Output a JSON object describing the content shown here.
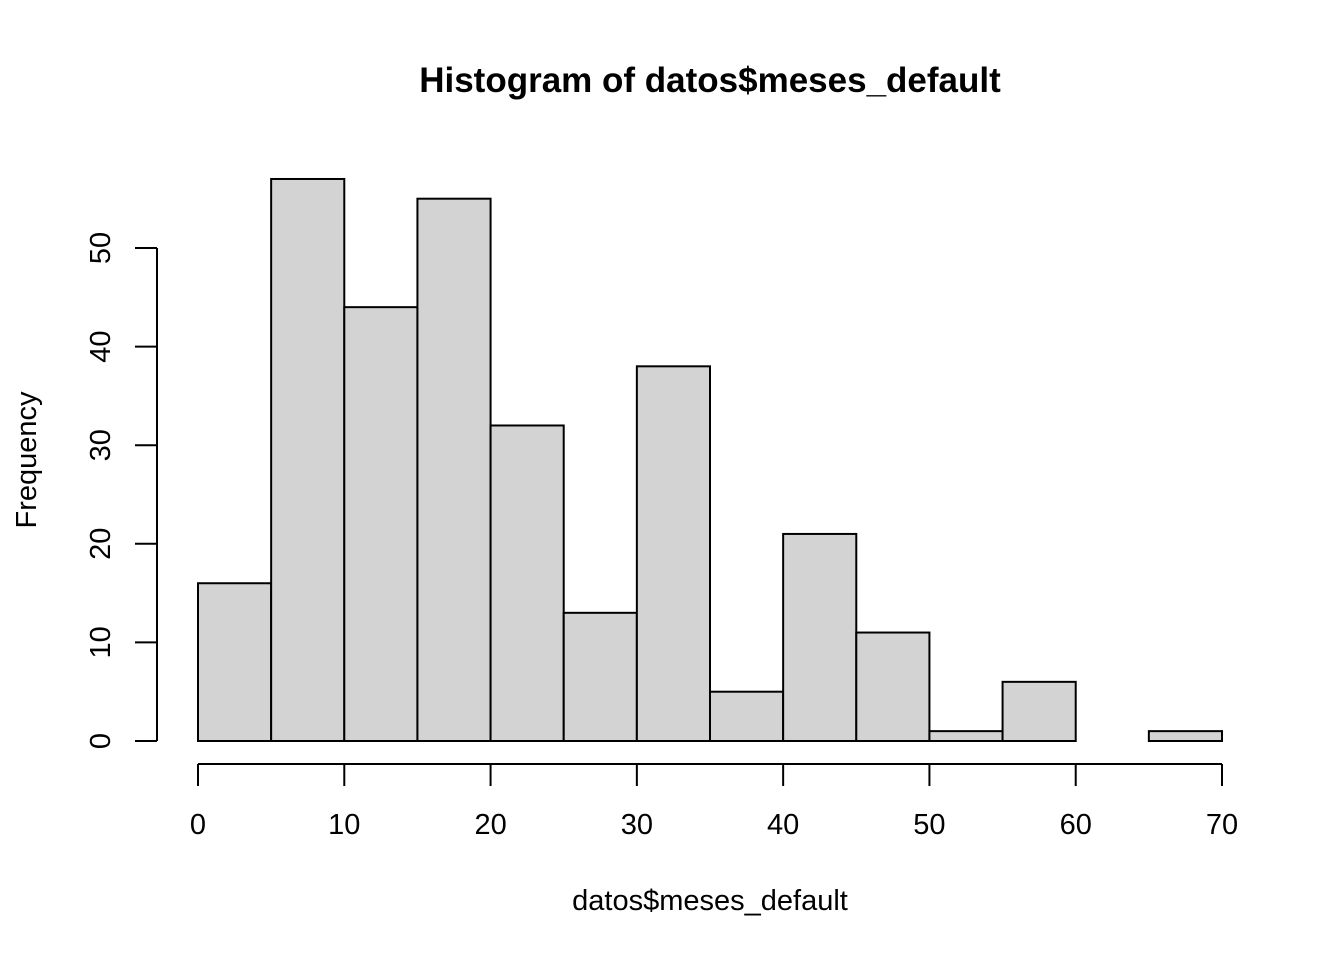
{
  "chart_data": {
    "type": "bar",
    "title": "Histogram of datos$meses_default",
    "xlabel": "datos$meses_default",
    "ylabel": "Frequency",
    "bin_edges": [
      0,
      5,
      10,
      15,
      20,
      25,
      30,
      35,
      40,
      45,
      50,
      55,
      60,
      65,
      70
    ],
    "values": [
      16,
      57,
      44,
      55,
      32,
      13,
      38,
      5,
      21,
      11,
      1,
      6,
      0,
      1
    ],
    "xlim": [
      0,
      70
    ],
    "ylim": [
      0,
      57
    ],
    "x_ticks": [
      0,
      10,
      20,
      30,
      40,
      50,
      60,
      70
    ],
    "y_ticks": [
      0,
      10,
      20,
      30,
      40,
      50
    ],
    "grid": false,
    "bar_color": "#d3d3d3",
    "edge_color": "#000000"
  }
}
